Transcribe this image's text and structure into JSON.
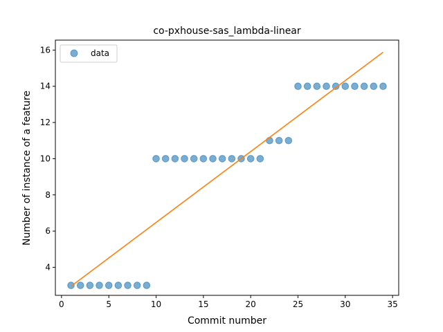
{
  "chart_data": {
    "type": "scatter",
    "title": "co-pxhouse-sas_lambda-linear",
    "xlabel": "Commit number",
    "ylabel": "Number of instance of a feature",
    "xlim": [
      -0.65,
      35.65
    ],
    "ylim": [
      2.45,
      16.55
    ],
    "xticks": [
      0,
      5,
      10,
      15,
      20,
      25,
      30,
      35
    ],
    "yticks": [
      4,
      6,
      8,
      10,
      12,
      14,
      16
    ],
    "grid": false,
    "legend_position": "top-left",
    "series": [
      {
        "name": "data",
        "kind": "scatter",
        "color": "#1f77b4",
        "x": [
          1,
          2,
          3,
          4,
          5,
          6,
          7,
          8,
          9,
          10,
          11,
          12,
          13,
          14,
          15,
          16,
          17,
          18,
          19,
          20,
          21,
          22,
          23,
          24,
          25,
          26,
          27,
          28,
          29,
          30,
          31,
          32,
          33,
          34
        ],
        "y": [
          3,
          3,
          3,
          3,
          3,
          3,
          3,
          3,
          3,
          10,
          10,
          10,
          10,
          10,
          10,
          10,
          10,
          10,
          10,
          10,
          10,
          11,
          11,
          11,
          14,
          14,
          14,
          14,
          14,
          14,
          14,
          14,
          14,
          14
        ]
      },
      {
        "kind": "line",
        "color": "#ff7f0e",
        "x": [
          1,
          34
        ],
        "y": [
          2.95,
          15.88
        ]
      }
    ]
  }
}
